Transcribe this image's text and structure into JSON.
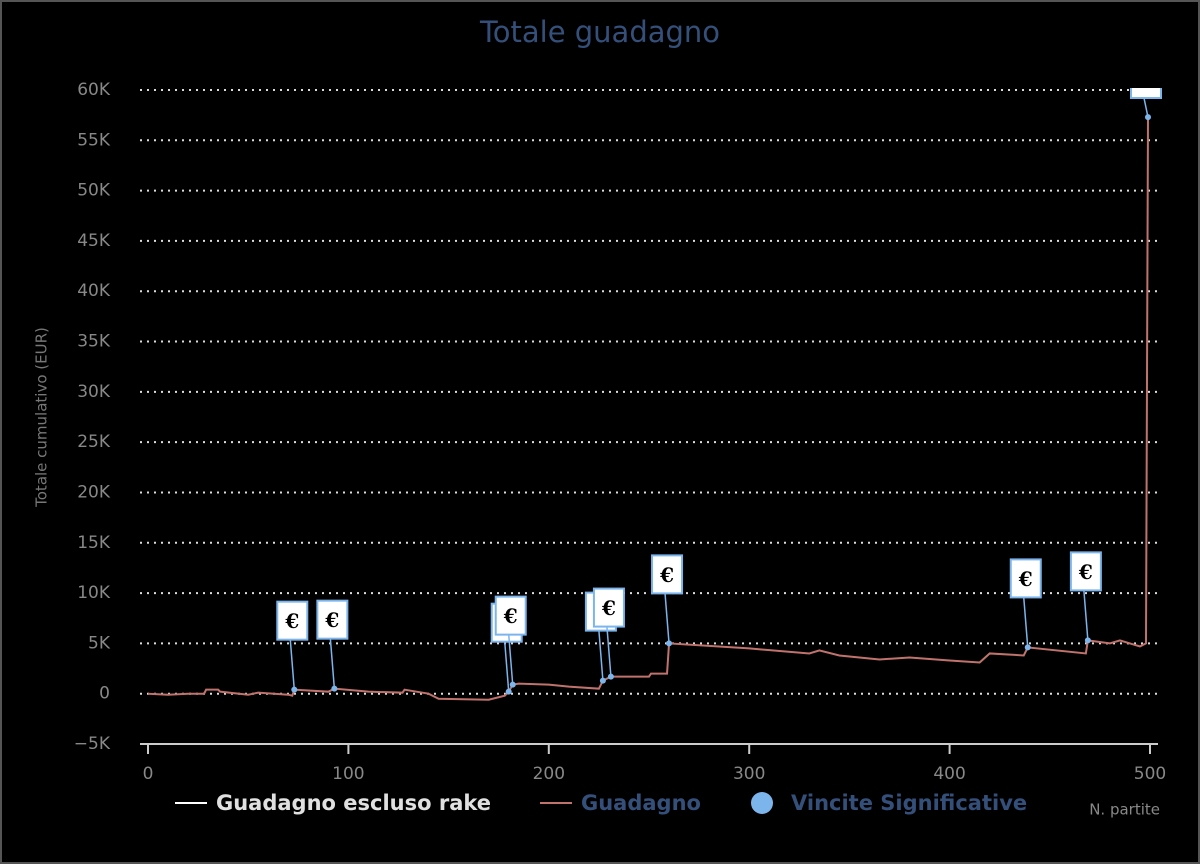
{
  "chart_data": {
    "type": "line",
    "title": "Totale guadagno",
    "y_label": "Totale cumulativo (EUR)",
    "x_label": "N. partite",
    "xlim": [
      0,
      500
    ],
    "xticks": [
      0,
      100,
      200,
      300,
      400,
      500
    ],
    "ylim": [
      -5000,
      60000
    ],
    "yticks": [
      {
        "value": -5000,
        "label": "−5K"
      },
      0,
      {
        "value": 5000,
        "label": "5K"
      },
      {
        "value": 10000,
        "label": "10K"
      },
      {
        "value": 15000,
        "label": "15K"
      },
      {
        "value": 20000,
        "label": "20K"
      },
      {
        "value": 25000,
        "label": "25K"
      },
      {
        "value": 30000,
        "label": "30K"
      },
      {
        "value": 35000,
        "label": "35K"
      },
      {
        "value": 40000,
        "label": "40K"
      },
      {
        "value": 45000,
        "label": "45K"
      },
      {
        "value": 50000,
        "label": "50K"
      },
      {
        "value": 55000,
        "label": "55K"
      },
      {
        "value": 60000,
        "label": "60K"
      }
    ],
    "grid": true,
    "series": [
      {
        "name": "Guadagno escluso rake",
        "color": "#ffffff"
      },
      {
        "name": "Guadagno",
        "color": "#c0736c",
        "x": [
          0,
          10,
          20,
          28,
          29,
          35,
          36,
          50,
          55,
          70,
          72,
          73,
          90,
          93,
          110,
          127,
          128,
          140,
          145,
          170,
          178,
          180,
          182,
          185,
          200,
          210,
          225,
          227,
          231,
          250,
          251,
          259,
          260,
          300,
          330,
          335,
          345,
          365,
          380,
          400,
          415,
          420,
          437,
          439,
          468,
          469,
          480,
          485,
          495,
          498,
          499
        ],
        "values": [
          0,
          -100,
          0,
          0,
          400,
          400,
          200,
          -100,
          100,
          -100,
          -200,
          400,
          200,
          500,
          200,
          100,
          400,
          0,
          -500,
          -600,
          -200,
          200,
          900,
          1000,
          900,
          700,
          500,
          1300,
          1700,
          1700,
          2000,
          2000,
          5000,
          4500,
          4000,
          4300,
          3800,
          3400,
          3600,
          3300,
          3100,
          4000,
          3800,
          4600,
          4000,
          5300,
          5000,
          5300,
          4700,
          5000,
          57300
        ]
      },
      {
        "name": "Vincite Significative",
        "type": "flags",
        "color": "#7cb5ec",
        "label": "€",
        "x": [
          73,
          93,
          180,
          182,
          227,
          231,
          260,
          439,
          469,
          499
        ],
        "values": [
          400,
          500,
          200,
          900,
          1300,
          1700,
          5000,
          4600,
          5300,
          57300
        ]
      }
    ]
  }
}
